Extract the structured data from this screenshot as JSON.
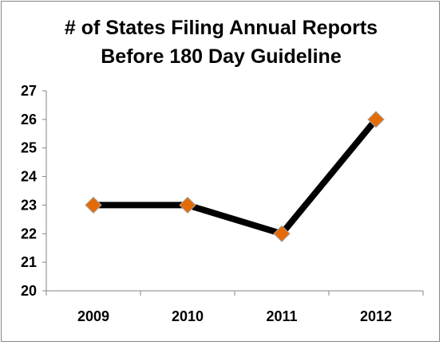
{
  "chart_data": {
    "type": "line",
    "title_lines": [
      "# of States Filing Annual Reports",
      "Before 180 Day Guideline"
    ],
    "categories": [
      "2009",
      "2010",
      "2011",
      "2012"
    ],
    "series": [
      {
        "values": [
          23,
          23,
          22,
          26
        ]
      }
    ],
    "ylim": [
      20,
      27
    ],
    "yticks": [
      20,
      21,
      22,
      23,
      24,
      25,
      26,
      27
    ],
    "xlabel": "",
    "ylabel": "",
    "grid": false,
    "legend": "none",
    "colors": {
      "line": "#000000",
      "marker_fill": "#E36C09",
      "marker_stroke": "#A6A6A6",
      "axis": "#868686"
    }
  }
}
